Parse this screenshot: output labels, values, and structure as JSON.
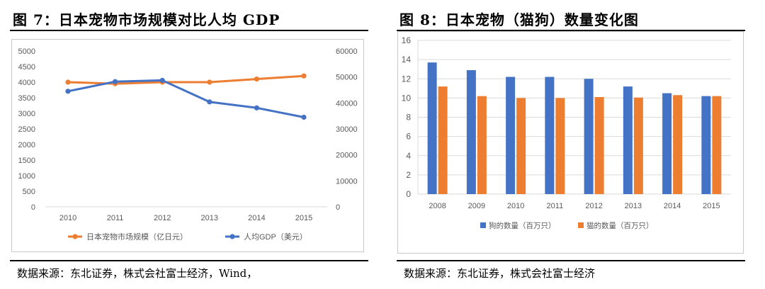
{
  "panels": [
    {
      "title": "图 7：日本宠物市场规模对比人均 GDP",
      "source": "数据来源：东北证券，株式会社富士经济，Wind，"
    },
    {
      "title": "图 8：日本宠物（猫狗）数量变化图",
      "source": "数据来源：东北证券，株式会社富士经济"
    }
  ],
  "chart_data": [
    {
      "type": "line",
      "title": "日本宠物市场规模对比人均GDP",
      "categories": [
        "2010",
        "2011",
        "2012",
        "2013",
        "2014",
        "2015"
      ],
      "series": [
        {
          "name": "日本宠物市场规模（亿日元）",
          "axis": "left",
          "color": "#ED7D31",
          "values": [
            4000,
            3950,
            4000,
            4000,
            4100,
            4200
          ]
        },
        {
          "name": "人均GDP（美元）",
          "axis": "right",
          "color": "#4472C4",
          "values": [
            44500,
            48200,
            48700,
            40400,
            38100,
            34500
          ]
        }
      ],
      "y_left": {
        "min": 0,
        "max": 5000,
        "ticks": [
          "0",
          "500",
          "1000",
          "1500",
          "2000",
          "2500",
          "3000",
          "3500",
          "4000",
          "4500",
          "5000"
        ]
      },
      "y_right": {
        "min": 0,
        "max": 60000,
        "ticks": [
          "0",
          "10000",
          "20000",
          "30000",
          "40000",
          "50000",
          "60000"
        ]
      },
      "grid": false,
      "legend_position": "bottom"
    },
    {
      "type": "bar",
      "title": "日本宠物（猫狗）数量变化图",
      "categories": [
        "2008",
        "2009",
        "2010",
        "2011",
        "2012",
        "2013",
        "2014",
        "2015"
      ],
      "series": [
        {
          "name": "狗的数量（百万只）",
          "color": "#4472C4",
          "values": [
            13.7,
            12.9,
            12.2,
            12.2,
            12.0,
            11.2,
            10.5,
            10.2
          ]
        },
        {
          "name": "猫的数量（百万只）",
          "color": "#ED7D31",
          "values": [
            11.2,
            10.2,
            10.0,
            10.0,
            10.1,
            10.05,
            10.3,
            10.2
          ]
        }
      ],
      "y": {
        "min": 0,
        "max": 16,
        "ticks": [
          "0",
          "2",
          "4",
          "6",
          "8",
          "10",
          "12",
          "14",
          "16"
        ]
      },
      "grid": true,
      "legend_position": "bottom"
    }
  ]
}
